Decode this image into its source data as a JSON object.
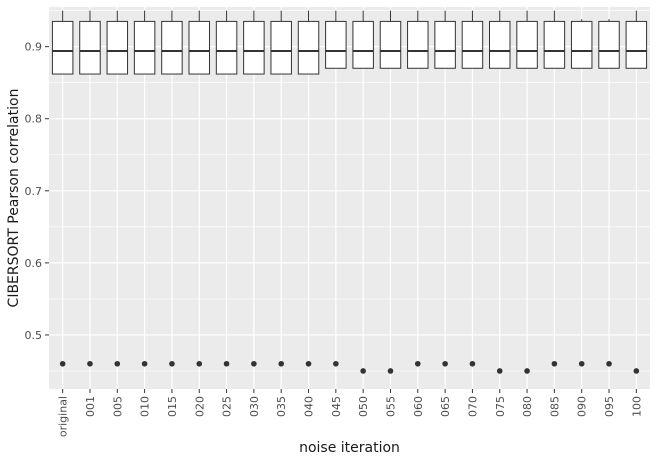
{
  "chart_data": {
    "type": "boxplot",
    "xlabel": "noise iteration",
    "ylabel": "CIBERSORT Pearson correlation",
    "ylim": [
      0.425,
      0.955
    ],
    "yticks": [
      0.5,
      0.6,
      0.7,
      0.8,
      0.9
    ],
    "ytick_labels": [
      "0.5",
      "0.6",
      "0.7",
      "0.8",
      "0.9"
    ],
    "grid": true,
    "background": "#ebebeb",
    "grid_color": "#ffffff",
    "box_fill": "#ffffff",
    "box_stroke": "#333333",
    "categories": [
      "original",
      "001",
      "005",
      "010",
      "015",
      "020",
      "025",
      "030",
      "035",
      "040",
      "045",
      "050",
      "055",
      "060",
      "065",
      "070",
      "075",
      "080",
      "085",
      "090",
      "095",
      "100"
    ],
    "boxes": [
      {
        "whisker_low": 0.862,
        "q1": 0.862,
        "median": 0.894,
        "q3": 0.935,
        "whisker_high": 0.95,
        "outlier": 0.46
      },
      {
        "whisker_low": 0.862,
        "q1": 0.862,
        "median": 0.894,
        "q3": 0.935,
        "whisker_high": 0.95,
        "outlier": 0.46
      },
      {
        "whisker_low": 0.862,
        "q1": 0.862,
        "median": 0.894,
        "q3": 0.935,
        "whisker_high": 0.95,
        "outlier": 0.46
      },
      {
        "whisker_low": 0.862,
        "q1": 0.862,
        "median": 0.894,
        "q3": 0.935,
        "whisker_high": 0.95,
        "outlier": 0.46
      },
      {
        "whisker_low": 0.862,
        "q1": 0.862,
        "median": 0.894,
        "q3": 0.935,
        "whisker_high": 0.95,
        "outlier": 0.46
      },
      {
        "whisker_low": 0.862,
        "q1": 0.862,
        "median": 0.894,
        "q3": 0.935,
        "whisker_high": 0.95,
        "outlier": 0.46
      },
      {
        "whisker_low": 0.862,
        "q1": 0.862,
        "median": 0.894,
        "q3": 0.935,
        "whisker_high": 0.95,
        "outlier": 0.46
      },
      {
        "whisker_low": 0.862,
        "q1": 0.862,
        "median": 0.894,
        "q3": 0.935,
        "whisker_high": 0.95,
        "outlier": 0.46
      },
      {
        "whisker_low": 0.862,
        "q1": 0.862,
        "median": 0.894,
        "q3": 0.935,
        "whisker_high": 0.95,
        "outlier": 0.46
      },
      {
        "whisker_low": 0.862,
        "q1": 0.862,
        "median": 0.894,
        "q3": 0.935,
        "whisker_high": 0.95,
        "outlier": 0.46
      },
      {
        "whisker_low": 0.87,
        "q1": 0.87,
        "median": 0.894,
        "q3": 0.935,
        "whisker_high": 0.95,
        "outlier": 0.46
      },
      {
        "whisker_low": 0.87,
        "q1": 0.87,
        "median": 0.894,
        "q3": 0.935,
        "whisker_high": 0.95,
        "outlier": 0.45
      },
      {
        "whisker_low": 0.87,
        "q1": 0.87,
        "median": 0.894,
        "q3": 0.935,
        "whisker_high": 0.95,
        "outlier": 0.45
      },
      {
        "whisker_low": 0.87,
        "q1": 0.87,
        "median": 0.894,
        "q3": 0.935,
        "whisker_high": 0.95,
        "outlier": 0.46
      },
      {
        "whisker_low": 0.87,
        "q1": 0.87,
        "median": 0.894,
        "q3": 0.935,
        "whisker_high": 0.95,
        "outlier": 0.46
      },
      {
        "whisker_low": 0.87,
        "q1": 0.87,
        "median": 0.894,
        "q3": 0.935,
        "whisker_high": 0.95,
        "outlier": 0.46
      },
      {
        "whisker_low": 0.87,
        "q1": 0.87,
        "median": 0.894,
        "q3": 0.935,
        "whisker_high": 0.95,
        "outlier": 0.45
      },
      {
        "whisker_low": 0.87,
        "q1": 0.87,
        "median": 0.894,
        "q3": 0.935,
        "whisker_high": 0.95,
        "outlier": 0.45
      },
      {
        "whisker_low": 0.87,
        "q1": 0.87,
        "median": 0.894,
        "q3": 0.935,
        "whisker_high": 0.95,
        "outlier": 0.46
      },
      {
        "whisker_low": 0.87,
        "q1": 0.87,
        "median": 0.894,
        "q3": 0.935,
        "whisker_high": 0.938,
        "outlier": 0.46
      },
      {
        "whisker_low": 0.87,
        "q1": 0.87,
        "median": 0.894,
        "q3": 0.935,
        "whisker_high": 0.938,
        "outlier": 0.46
      },
      {
        "whisker_low": 0.87,
        "q1": 0.87,
        "median": 0.894,
        "q3": 0.935,
        "whisker_high": 0.95,
        "outlier": 0.45
      }
    ]
  }
}
